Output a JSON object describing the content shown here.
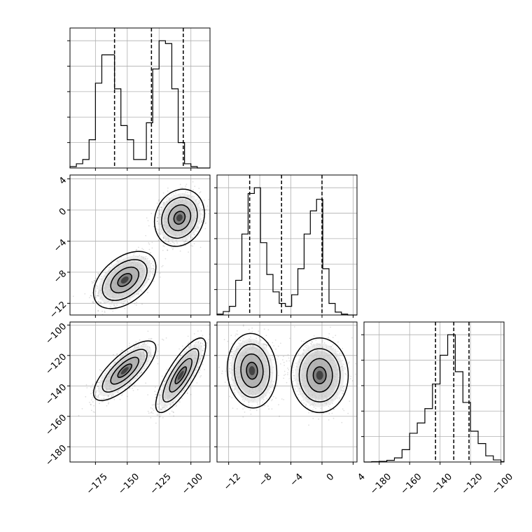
{
  "chart_data": {
    "type": "corner",
    "grid": true,
    "parameters": [
      {
        "id": "p0",
        "range": [
          -195,
          -85
        ],
        "ticks": [
          -175,
          -150,
          -125,
          -100
        ],
        "tick_labels": [
          "−175",
          "−150",
          "−125",
          "−100"
        ],
        "quantiles": [
          -160,
          -131,
          -106
        ],
        "histogram": {
          "bin_edges": [
            -195,
            -190,
            -185,
            -180,
            -175,
            -170,
            -165,
            -160,
            -155,
            -150,
            -145,
            -140,
            -135,
            -130,
            -125,
            -120,
            -115,
            -110,
            -105,
            -100,
            -95,
            -90,
            -85
          ],
          "counts": [
            0.5,
            1.5,
            3,
            10,
            30,
            40,
            40,
            28,
            15,
            10,
            3,
            3,
            16,
            35,
            45,
            44,
            28,
            9,
            1.5,
            0.5,
            0,
            0
          ]
        }
      },
      {
        "id": "p1",
        "range": [
          -13.5,
          4.5
        ],
        "ticks": [
          -12,
          -8,
          -4,
          0,
          4
        ],
        "tick_labels": [
          "−12",
          "−8",
          "−4",
          "0",
          "4"
        ],
        "quantiles": [
          -9.3,
          -5.2,
          0
        ],
        "histogram": {
          "bin_edges": [
            -13.5,
            -12.7,
            -11.9,
            -11.1,
            -10.3,
            -9.5,
            -8.7,
            -7.9,
            -7.1,
            -6.3,
            -5.5,
            -4.7,
            -3.9,
            -3.1,
            -2.3,
            -1.5,
            -0.7,
            0.1,
            0.9,
            1.7,
            2.5,
            3.3,
            4.5
          ],
          "counts": [
            0.3,
            1.2,
            3,
            12,
            28,
            42,
            44,
            25,
            14,
            8,
            4,
            3,
            7,
            16,
            28,
            36,
            40,
            16,
            4,
            1,
            0.3,
            0
          ]
        }
      },
      {
        "id": "p2",
        "range": [
          -190,
          -98
        ],
        "ticks": [
          -180,
          -160,
          -140,
          -120,
          -100
        ],
        "tick_labels": [
          "−180",
          "−160",
          "−140",
          "−120",
          "−100"
        ],
        "quantiles": [
          -143,
          -131,
          -121
        ],
        "histogram": {
          "bin_edges": [
            -190,
            -185,
            -180,
            -175,
            -170,
            -165,
            -160,
            -155,
            -150,
            -145,
            -140,
            -135,
            -130,
            -125,
            -120,
            -115,
            -110,
            -105,
            -100,
            -98
          ],
          "counts": [
            0,
            0.2,
            0.3,
            0.8,
            2,
            6,
            14,
            19,
            26,
            38,
            52,
            62,
            44,
            29,
            15,
            9,
            3,
            1,
            0.2
          ]
        }
      }
    ],
    "scatter_panels": [
      {
        "x": "p0",
        "y": "p1",
        "modes": [
          {
            "center": [
              -152,
              -9
            ],
            "sd": [
              10,
              1.5
            ],
            "corr": 0.45
          },
          {
            "center": [
              -109,
              -1
            ],
            "sd": [
              8,
              1.5
            ],
            "corr": 0.15
          }
        ]
      },
      {
        "x": "p0",
        "y": "p2",
        "modes": [
          {
            "center": [
              -152,
              -130
            ],
            "sd": [
              10,
              8
            ],
            "corr": 0.75
          },
          {
            "center": [
              -108,
              -133
            ],
            "sd": [
              8,
              10
            ],
            "corr": 0.8
          }
        ]
      },
      {
        "x": "p1",
        "y": "p2",
        "modes": [
          {
            "center": [
              -9,
              -130
            ],
            "sd": [
              1.3,
              10
            ],
            "corr": -0.05
          },
          {
            "center": [
              -0.3,
              -133
            ],
            "sd": [
              1.5,
              10
            ],
            "corr": 0.0
          }
        ]
      }
    ],
    "title": "",
    "xlabel": "",
    "ylabel": ""
  }
}
